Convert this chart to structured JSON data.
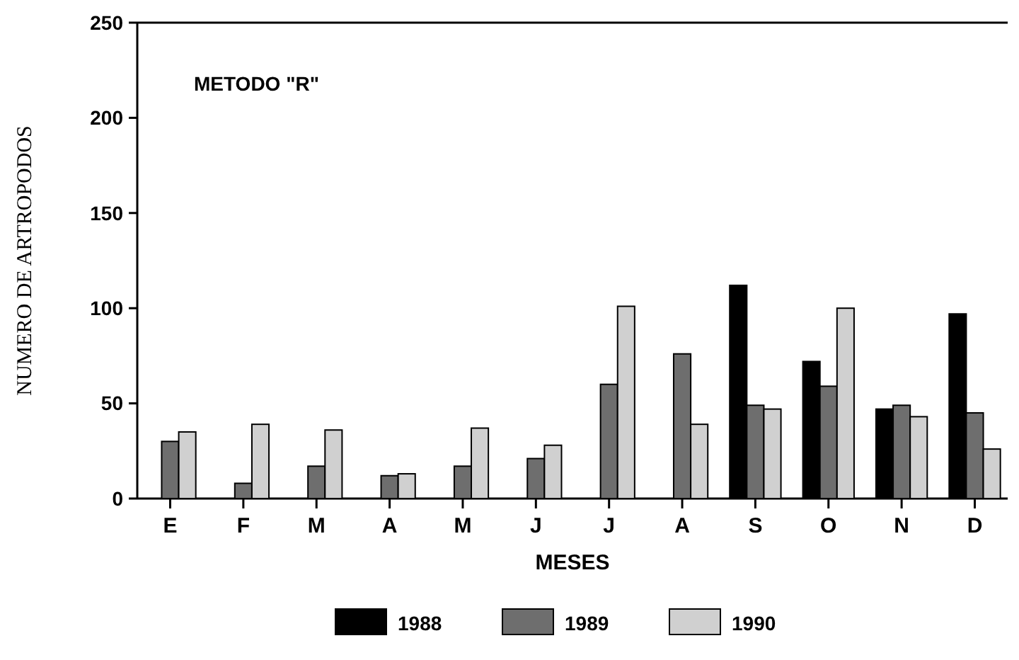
{
  "chart_data": {
    "type": "bar",
    "xlabel": "MESES",
    "ylabel": "NUMERO DE ARTROPODOS",
    "annotations": [
      "METODO \"R\""
    ],
    "categories": [
      "E",
      "F",
      "M",
      "A",
      "M",
      "J",
      "J",
      "A",
      "S",
      "O",
      "N",
      "D"
    ],
    "series": [
      {
        "name": "1988",
        "color": "#000000",
        "values": [
          null,
          null,
          null,
          null,
          null,
          null,
          null,
          null,
          112,
          72,
          47,
          97
        ]
      },
      {
        "name": "1989",
        "color": "#6e6e6e",
        "values": [
          30,
          8,
          17,
          12,
          17,
          21,
          60,
          76,
          49,
          59,
          49,
          45
        ]
      },
      {
        "name": "1990",
        "color": "#d0d0d0",
        "values": [
          35,
          39,
          36,
          13,
          37,
          28,
          101,
          39,
          47,
          100,
          43,
          26
        ]
      }
    ],
    "ylim": [
      0,
      250
    ],
    "yticks": [
      0,
      50,
      100,
      150,
      200,
      250
    ],
    "grid": false,
    "legend": "bottom"
  }
}
